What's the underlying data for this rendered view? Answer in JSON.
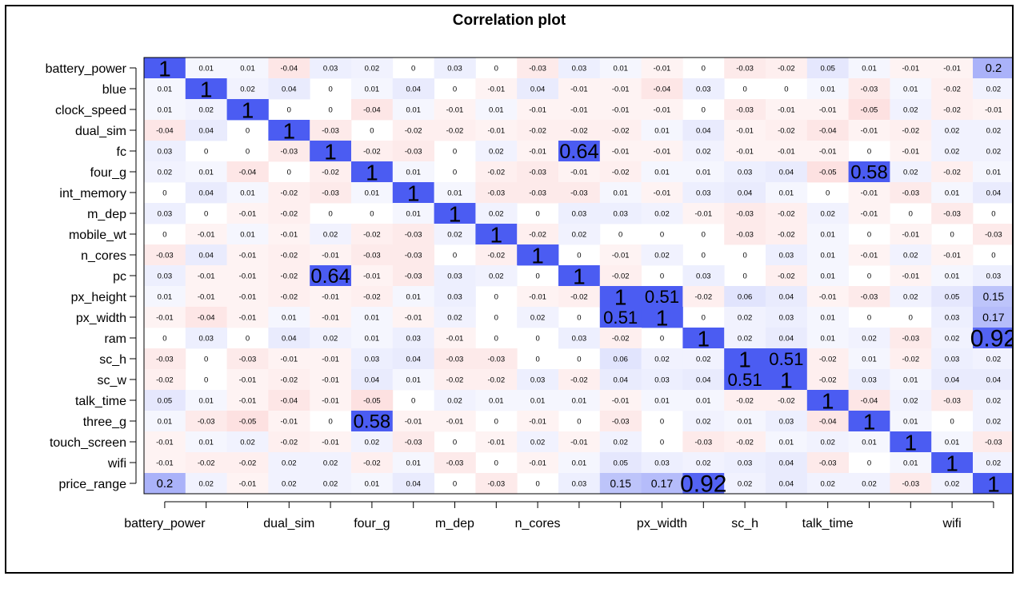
{
  "chart_data": {
    "type": "heatmap",
    "title": "Correlation plot",
    "variables": [
      "battery_power",
      "blue",
      "clock_speed",
      "dual_sim",
      "fc",
      "four_g",
      "int_memory",
      "m_dep",
      "mobile_wt",
      "n_cores",
      "pc",
      "px_height",
      "px_width",
      "ram",
      "sc_h",
      "sc_w",
      "talk_time",
      "three_g",
      "touch_screen",
      "wifi",
      "price_range"
    ],
    "x_tick_labels": [
      "battery_power",
      "dual_sim",
      "four_g",
      "m_dep",
      "n_cores",
      "px_width",
      "sc_h",
      "talk_time",
      "wifi"
    ],
    "x_tick_label_indices": [
      0,
      3,
      5,
      7,
      9,
      12,
      14,
      16,
      19
    ],
    "matrix": [
      [
        1,
        0.01,
        0.01,
        -0.04,
        0.03,
        0.02,
        0,
        0.03,
        0,
        -0.03,
        0.03,
        0.01,
        -0.01,
        0,
        -0.03,
        -0.02,
        0.05,
        0.01,
        -0.01,
        -0.01,
        0.2
      ],
      [
        0.01,
        1,
        0.02,
        0.04,
        0,
        0.01,
        0.04,
        0,
        -0.01,
        0.04,
        -0.01,
        -0.01,
        -0.04,
        0.03,
        0,
        0,
        0.01,
        -0.03,
        0.01,
        -0.02,
        0.02
      ],
      [
        0.01,
        0.02,
        1,
        0,
        0,
        -0.04,
        0.01,
        -0.01,
        0.01,
        -0.01,
        -0.01,
        -0.01,
        -0.01,
        0,
        -0.03,
        -0.01,
        -0.01,
        -0.05,
        0.02,
        -0.02,
        -0.01
      ],
      [
        -0.04,
        0.04,
        0,
        1,
        -0.03,
        0,
        -0.02,
        -0.02,
        -0.01,
        -0.02,
        -0.02,
        -0.02,
        0.01,
        0.04,
        -0.01,
        -0.02,
        -0.04,
        -0.01,
        -0.02,
        0.02,
        0.02
      ],
      [
        0.03,
        0,
        0,
        -0.03,
        1,
        -0.02,
        -0.03,
        0,
        0.02,
        -0.01,
        0.64,
        -0.01,
        -0.01,
        0.02,
        -0.01,
        -0.01,
        -0.01,
        0,
        -0.01,
        0.02,
        0.02
      ],
      [
        0.02,
        0.01,
        -0.04,
        0,
        -0.02,
        1,
        0.01,
        0,
        -0.02,
        -0.03,
        -0.01,
        -0.02,
        0.01,
        0.01,
        0.03,
        0.04,
        -0.05,
        0.58,
        0.02,
        -0.02,
        0.01
      ],
      [
        0,
        0.04,
        0.01,
        -0.02,
        -0.03,
        0.01,
        1,
        0.01,
        -0.03,
        -0.03,
        -0.03,
        0.01,
        -0.01,
        0.03,
        0.04,
        0.01,
        0,
        -0.01,
        -0.03,
        0.01,
        0.04
      ],
      [
        0.03,
        0,
        -0.01,
        -0.02,
        0,
        0,
        0.01,
        1,
        0.02,
        0,
        0.03,
        0.03,
        0.02,
        -0.01,
        -0.03,
        -0.02,
        0.02,
        -0.01,
        0,
        -0.03,
        0
      ],
      [
        0,
        -0.01,
        0.01,
        -0.01,
        0.02,
        -0.02,
        -0.03,
        0.02,
        1,
        -0.02,
        0.02,
        0,
        0,
        0,
        -0.03,
        -0.02,
        0.01,
        0,
        -0.01,
        0,
        -0.03
      ],
      [
        -0.03,
        0.04,
        -0.01,
        -0.02,
        -0.01,
        -0.03,
        -0.03,
        0,
        -0.02,
        1,
        0,
        -0.01,
        0.02,
        0,
        0,
        0.03,
        0.01,
        -0.01,
        0.02,
        -0.01,
        0
      ],
      [
        0.03,
        -0.01,
        -0.01,
        -0.02,
        0.64,
        -0.01,
        -0.03,
        0.03,
        0.02,
        0,
        1,
        -0.02,
        0,
        0.03,
        0,
        -0.02,
        0.01,
        0,
        -0.01,
        0.01,
        0.03
      ],
      [
        0.01,
        -0.01,
        -0.01,
        -0.02,
        -0.01,
        -0.02,
        0.01,
        0.03,
        0,
        -0.01,
        -0.02,
        1,
        0.51,
        -0.02,
        0.06,
        0.04,
        -0.01,
        -0.03,
        0.02,
        0.05,
        0.15
      ],
      [
        -0.01,
        -0.04,
        -0.01,
        0.01,
        -0.01,
        0.01,
        -0.01,
        0.02,
        0,
        0.02,
        0,
        0.51,
        1,
        0,
        0.02,
        0.03,
        0.01,
        0,
        0,
        0.03,
        0.17
      ],
      [
        0,
        0.03,
        0,
        0.04,
        0.02,
        0.01,
        0.03,
        -0.01,
        0,
        0,
        0.03,
        -0.02,
        0,
        1,
        0.02,
        0.04,
        0.01,
        0.02,
        -0.03,
        0.02,
        0.92
      ],
      [
        -0.03,
        0,
        -0.03,
        -0.01,
        -0.01,
        0.03,
        0.04,
        -0.03,
        -0.03,
        0,
        0,
        0.06,
        0.02,
        0.02,
        1,
        0.51,
        -0.02,
        0.01,
        -0.02,
        0.03,
        0.02
      ],
      [
        -0.02,
        0,
        -0.01,
        -0.02,
        -0.01,
        0.04,
        0.01,
        -0.02,
        -0.02,
        0.03,
        -0.02,
        0.04,
        0.03,
        0.04,
        0.51,
        1,
        -0.02,
        0.03,
        0.01,
        0.04,
        0.04
      ],
      [
        0.05,
        0.01,
        -0.01,
        -0.04,
        -0.01,
        -0.05,
        0,
        0.02,
        0.01,
        0.01,
        0.01,
        -0.01,
        0.01,
        0.01,
        -0.02,
        -0.02,
        1,
        -0.04,
        0.02,
        -0.03,
        0.02
      ],
      [
        0.01,
        -0.03,
        -0.05,
        -0.01,
        0,
        0.58,
        -0.01,
        -0.01,
        0,
        -0.01,
        0,
        -0.03,
        0,
        0.02,
        0.01,
        0.03,
        -0.04,
        1,
        0.01,
        0,
        0.02
      ],
      [
        -0.01,
        0.01,
        0.02,
        -0.02,
        -0.01,
        0.02,
        -0.03,
        0,
        -0.01,
        0.02,
        -0.01,
        0.02,
        0,
        -0.03,
        -0.02,
        0.01,
        0.02,
        0.01,
        1,
        0.01,
        -0.03
      ],
      [
        -0.01,
        -0.02,
        -0.02,
        0.02,
        0.02,
        -0.02,
        0.01,
        -0.03,
        0,
        -0.01,
        0.01,
        0.05,
        0.03,
        0.02,
        0.03,
        0.04,
        -0.03,
        0,
        0.01,
        1,
        0.02
      ],
      [
        0.2,
        0.02,
        -0.01,
        0.02,
        0.02,
        0.01,
        0.04,
        0,
        -0.03,
        0,
        0.03,
        0.15,
        0.17,
        0.92,
        0.02,
        0.04,
        0.02,
        0.02,
        -0.03,
        0.02,
        1
      ]
    ],
    "value_range": [
      -1,
      1
    ],
    "colors": {
      "positive": "#4b5cf2",
      "negative": "#f03030",
      "neutral": "#ffffff"
    },
    "grid": false,
    "legend": "none"
  }
}
